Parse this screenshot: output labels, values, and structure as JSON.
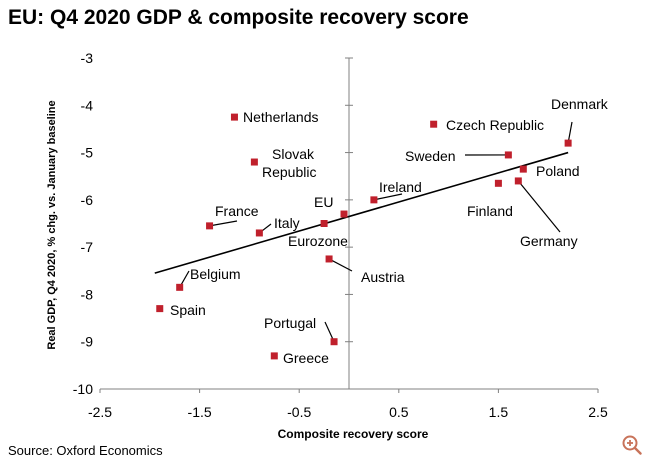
{
  "chart_data": {
    "type": "scatter",
    "title": "EU: Q4 2020 GDP & composite recovery score",
    "xlabel": "Composite recovery score",
    "ylabel": "Real GDP, Q4 2020, % chg. vs. January baseline",
    "xlim": [
      -2.5,
      2.5
    ],
    "ylim": [
      -10,
      -3
    ],
    "x_ticks": [
      -2.5,
      -1.5,
      -0.5,
      0.5,
      1.5,
      2.5
    ],
    "y_ticks": [
      -3,
      -4,
      -5,
      -6,
      -7,
      -8,
      -9,
      -10
    ],
    "x_tick_labels": [
      "-2.5",
      "-1.5",
      "-0.5",
      "0.5",
      "1.5",
      "2.5"
    ],
    "y_tick_labels": [
      "-3",
      "-4",
      "-5",
      "-6",
      "-7",
      "-8",
      "-9",
      "-10"
    ],
    "grid": false,
    "marker_color": "#c0202c",
    "points": [
      {
        "label": "Denmark",
        "x": 2.2,
        "y": -4.8
      },
      {
        "label": "Czech Republic",
        "x": 0.85,
        "y": -4.4
      },
      {
        "label": "Sweden",
        "x": 1.6,
        "y": -5.05
      },
      {
        "label": "Poland",
        "x": 1.75,
        "y": -5.35
      },
      {
        "label": "Germany",
        "x": 1.7,
        "y": -5.6
      },
      {
        "label": "Finland",
        "x": 1.5,
        "y": -5.65
      },
      {
        "label": "Ireland",
        "x": 0.25,
        "y": -6.0
      },
      {
        "label": "EU",
        "x": -0.05,
        "y": -6.3
      },
      {
        "label": "Eurozone",
        "x": -0.25,
        "y": -6.5
      },
      {
        "label": "Netherlands",
        "x": -1.15,
        "y": -4.25
      },
      {
        "label": "Slovak Republic",
        "x": -0.95,
        "y": -5.2
      },
      {
        "label": "France",
        "x": -1.4,
        "y": -6.55
      },
      {
        "label": "Italy",
        "x": -0.9,
        "y": -6.7
      },
      {
        "label": "Austria",
        "x": -0.2,
        "y": -7.25
      },
      {
        "label": "Belgium",
        "x": -1.7,
        "y": -7.85
      },
      {
        "label": "Spain",
        "x": -1.9,
        "y": -8.3
      },
      {
        "label": "Portugal",
        "x": -0.15,
        "y": -9.0
      },
      {
        "label": "Greece",
        "x": -0.75,
        "y": -9.3
      }
    ],
    "trendline": {
      "x": [
        -1.95,
        2.2
      ],
      "y": [
        -7.55,
        -5.0
      ]
    }
  },
  "source": "Source: Oxford Economics",
  "colors": {
    "marker": "#c0202c",
    "axis": "#808080",
    "trend": "#000000"
  },
  "icons": {
    "zoom": "zoom-in-icon"
  }
}
